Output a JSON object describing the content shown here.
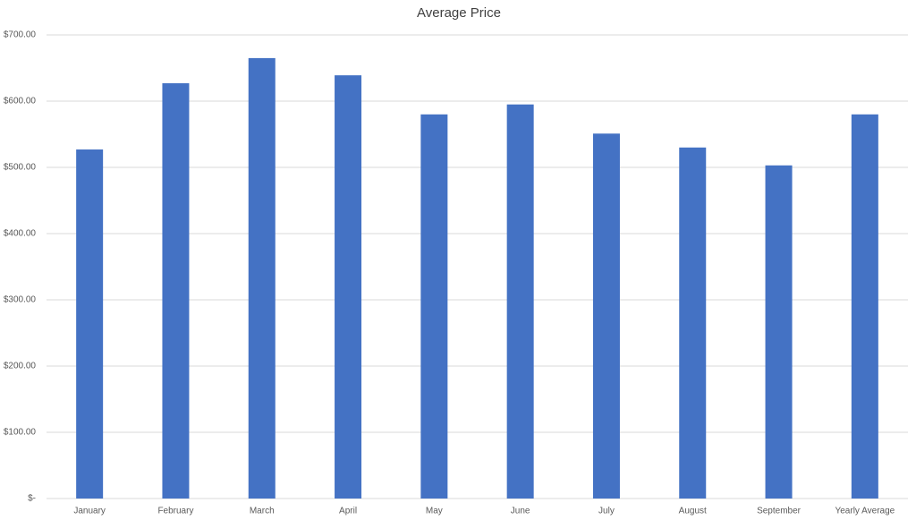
{
  "chart_data": {
    "type": "bar",
    "title": "Average Price",
    "categories": [
      "January",
      "February",
      "March",
      "April",
      "May",
      "June",
      "July",
      "August",
      "September",
      "Yearly Average"
    ],
    "values": [
      527,
      627,
      665,
      639,
      580,
      595,
      551,
      530,
      503,
      580
    ],
    "color": "#4472c4",
    "ylim": [
      0,
      700
    ],
    "yticks": [
      {
        "value": 0,
        "label": "$-"
      },
      {
        "value": 100,
        "label": "$100.00"
      },
      {
        "value": 200,
        "label": "$200.00"
      },
      {
        "value": 300,
        "label": "$300.00"
      },
      {
        "value": 400,
        "label": "$400.00"
      },
      {
        "value": 500,
        "label": "$500.00"
      },
      {
        "value": 600,
        "label": "$600.00"
      },
      {
        "value": 700,
        "label": "$700.00"
      }
    ],
    "grid": true
  }
}
